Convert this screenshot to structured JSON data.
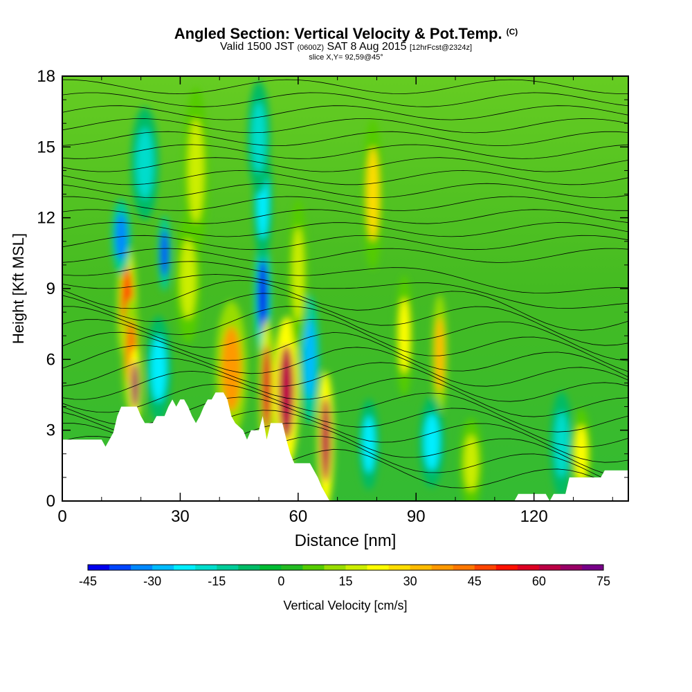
{
  "title": {
    "main": "Angled Section: Vertical Velocity & Pot.Temp.",
    "units_tag": "(C)",
    "valid_prefix": "Valid 1500 JST",
    "valid_utc": "(0600Z)",
    "valid_date": "SAT 8 Aug 2015",
    "forecast": "[12hrFcst@2324z]",
    "slice": "slice X,Y= 92,59@45°"
  },
  "chart_data": {
    "type": "heatmap",
    "xlabel": "Distance [nm]",
    "ylabel": "Height [Kft MSL]",
    "xlim": [
      0,
      144
    ],
    "ylim": [
      0,
      18
    ],
    "x_ticks": [
      "0",
      "30",
      "60",
      "90",
      "120"
    ],
    "y_ticks": [
      "0",
      "3",
      "6",
      "9",
      "12",
      "15",
      "18"
    ],
    "colorbar": {
      "label": "Vertical Velocity [cm/s]",
      "tick_labels": [
        "-45",
        "-30",
        "-15",
        "0",
        "15",
        "30",
        "45",
        "60",
        "75"
      ],
      "levels": [
        -45,
        -40,
        -35,
        -30,
        -25,
        -20,
        -15,
        -10,
        -5,
        0,
        5,
        10,
        15,
        20,
        25,
        30,
        35,
        40,
        45,
        50,
        55,
        60,
        65,
        70,
        75
      ],
      "colors": [
        "#0000ee",
        "#0044ff",
        "#0088ff",
        "#00bbff",
        "#00eeff",
        "#00ddcc",
        "#00cc99",
        "#00bb66",
        "#00bb33",
        "#22bb22",
        "#55cc00",
        "#99dd00",
        "#ccee00",
        "#ffff00",
        "#ffdd00",
        "#ffbb00",
        "#ff9900",
        "#ff7700",
        "#ff4400",
        "#ff1100",
        "#dd0022",
        "#bb0044",
        "#990066",
        "#770088"
      ]
    },
    "terrain": [
      [
        0,
        2.6
      ],
      [
        7,
        2.6
      ],
      [
        10,
        2.6
      ],
      [
        11,
        2.3
      ],
      [
        12,
        2.6
      ],
      [
        13,
        2.9
      ],
      [
        14,
        3.6
      ],
      [
        15,
        4.0
      ],
      [
        19,
        4.0
      ],
      [
        20,
        3.6
      ],
      [
        21,
        3.3
      ],
      [
        23,
        3.3
      ],
      [
        24,
        3.6
      ],
      [
        26,
        3.6
      ],
      [
        27,
        4.0
      ],
      [
        28,
        4.3
      ],
      [
        29,
        4.0
      ],
      [
        30,
        4.3
      ],
      [
        31,
        4.3
      ],
      [
        32,
        4.0
      ],
      [
        33,
        3.6
      ],
      [
        34,
        3.3
      ],
      [
        35,
        3.6
      ],
      [
        36,
        4.0
      ],
      [
        37,
        4.3
      ],
      [
        38,
        4.3
      ],
      [
        39,
        4.6
      ],
      [
        41,
        4.6
      ],
      [
        42,
        4.3
      ],
      [
        43,
        3.6
      ],
      [
        44,
        3.3
      ],
      [
        46,
        3.0
      ],
      [
        47,
        2.6
      ],
      [
        48,
        3.0
      ],
      [
        50,
        3.0
      ],
      [
        51,
        3.6
      ],
      [
        52,
        2.6
      ],
      [
        53,
        3.3
      ],
      [
        56,
        3.3
      ],
      [
        57,
        2.6
      ],
      [
        58,
        2.0
      ],
      [
        59,
        1.6
      ],
      [
        63,
        1.6
      ],
      [
        64,
        1.3
      ],
      [
        65,
        1.0
      ],
      [
        66,
        0.6
      ],
      [
        67,
        0.3
      ],
      [
        68,
        0
      ],
      [
        115,
        0
      ],
      [
        116,
        0.3
      ],
      [
        123,
        0.3
      ],
      [
        124,
        0
      ],
      [
        125,
        0.3
      ],
      [
        128,
        0.3
      ],
      [
        129,
        1.0
      ],
      [
        137,
        1.0
      ],
      [
        138,
        1.3
      ],
      [
        144,
        1.3
      ]
    ],
    "vertical_velocity_cells": [
      {
        "x": 16.5,
        "y": 8.3,
        "w": 1.5,
        "h": 1.6,
        "v": 45
      },
      {
        "x": 17.5,
        "y": 6.2,
        "w": 1.4,
        "h": 1.5,
        "v": 40
      },
      {
        "x": 18.5,
        "y": 4.9,
        "w": 1.0,
        "h": 1.0,
        "v": 65
      },
      {
        "x": 15,
        "y": 11.2,
        "w": 1.5,
        "h": 1.0,
        "v": -35
      },
      {
        "x": 26,
        "y": 10.5,
        "w": 1.0,
        "h": 1.0,
        "v": -40
      },
      {
        "x": 21,
        "y": 14.3,
        "w": 2.2,
        "h": 1.5,
        "v": -20
      },
      {
        "x": 24.5,
        "y": 5.6,
        "w": 2.0,
        "h": 1.4,
        "v": -25
      },
      {
        "x": 34,
        "y": 14.0,
        "w": 2.0,
        "h": 2.2,
        "v": 15
      },
      {
        "x": 32,
        "y": 9.4,
        "w": 2.0,
        "h": 1.7,
        "v": 15
      },
      {
        "x": 43,
        "y": 5.6,
        "w": 2.5,
        "h": 1.8,
        "v": 35
      },
      {
        "x": 51,
        "y": 8.7,
        "w": 1.3,
        "h": 1.6,
        "v": -45
      },
      {
        "x": 51,
        "y": 12.7,
        "w": 1.5,
        "h": 1.6,
        "v": -25
      },
      {
        "x": 50,
        "y": 15.4,
        "w": 1.8,
        "h": 1.5,
        "v": -20
      },
      {
        "x": 52,
        "y": 4.8,
        "w": 1.2,
        "h": 1.8,
        "v": 55
      },
      {
        "x": 57,
        "y": 4.6,
        "w": 2.0,
        "h": 2.0,
        "v": 60
      },
      {
        "x": 67,
        "y": 2.6,
        "w": 1.3,
        "h": 1.8,
        "v": 60
      },
      {
        "x": 63,
        "y": 6.0,
        "w": 1.5,
        "h": 1.7,
        "v": -30
      },
      {
        "x": 60,
        "y": 9.6,
        "w": 1.5,
        "h": 2.0,
        "v": 15
      },
      {
        "x": 79,
        "y": 13.0,
        "w": 1.6,
        "h": 2.0,
        "v": 25
      },
      {
        "x": 87,
        "y": 7.0,
        "w": 1.4,
        "h": 1.6,
        "v": 20
      },
      {
        "x": 96,
        "y": 6.2,
        "w": 1.2,
        "h": 1.6,
        "v": 30
      },
      {
        "x": 94,
        "y": 2.5,
        "w": 2.0,
        "h": 1.2,
        "v": -25
      },
      {
        "x": 78,
        "y": 2.4,
        "w": 1.6,
        "h": 1.2,
        "v": -25
      },
      {
        "x": 104,
        "y": 1.6,
        "w": 1.8,
        "h": 1.2,
        "v": 15
      },
      {
        "x": 127,
        "y": 2.4,
        "w": 1.8,
        "h": 1.4,
        "v": -20
      },
      {
        "x": 132,
        "y": 2.0,
        "w": 1.6,
        "h": 1.2,
        "v": 20
      }
    ]
  }
}
